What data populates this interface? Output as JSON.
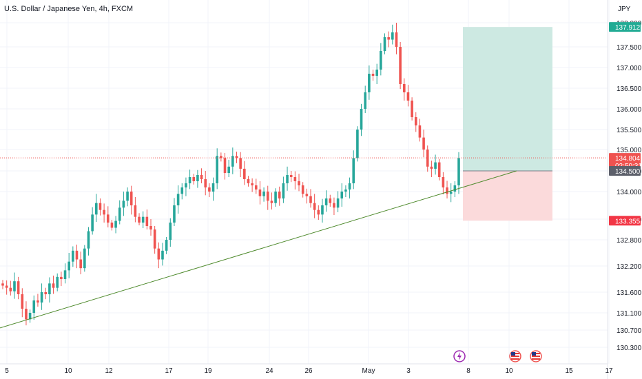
{
  "symbol_title": "U.S. Dollar / Japanese Yen, 4h, FXCM",
  "currency_label": "JPY",
  "colors": {
    "up": "#26a69a",
    "down": "#ef5350",
    "trendline": "#4e8a2c",
    "take_profit_zone": "#cde9e2",
    "stop_loss_zone": "#fbdadb",
    "last_price_line": "#ef5350"
  },
  "axis": {
    "y_ticks": [
      "138.000",
      "137.500",
      "137.000",
      "136.500",
      "136.000",
      "135.500",
      "135.000",
      "134.500",
      "134.000",
      "133.400",
      "132.800",
      "132.200",
      "131.600",
      "131.100",
      "130.700",
      "130.300"
    ],
    "x_ticks": [
      "5",
      "10",
      "12",
      "17",
      "19",
      "24",
      "26",
      "May",
      "3",
      "8",
      "10",
      "15",
      "17"
    ]
  },
  "price_tags": {
    "take_profit": "137.912",
    "last_price": "134.804",
    "countdown": "02:50:31",
    "entry": "134.500",
    "stop_loss": "133.355"
  },
  "event_icons": [
    "lightning-event-icon",
    "us-flag-event-icon",
    "us-flag-event-icon"
  ],
  "chart_data": {
    "type": "candlestick",
    "title": "U.S. Dollar / Japanese Yen, 4h, FXCM",
    "unit": "JPY",
    "x_tick_labels": [
      "5",
      "10",
      "12",
      "17",
      "19",
      "24",
      "26",
      "May",
      "3",
      "8",
      "10",
      "15",
      "17"
    ],
    "y_tick_labels": [
      "138.000",
      "137.500",
      "137.000",
      "136.500",
      "136.000",
      "135.500",
      "135.000",
      "134.500",
      "134.000",
      "133.400",
      "132.800",
      "132.200",
      "131.600",
      "131.100",
      "130.700",
      "130.300"
    ],
    "candles_close": [
      131.75,
      131.7,
      131.62,
      131.85,
      131.55,
      131.2,
      130.95,
      131.1,
      131.4,
      131.35,
      131.6,
      131.55,
      131.8,
      131.7,
      131.95,
      131.9,
      132.1,
      132.3,
      132.55,
      132.35,
      132.15,
      132.6,
      133.05,
      133.5,
      133.75,
      133.6,
      133.5,
      133.3,
      133.15,
      133.35,
      133.65,
      133.8,
      134.0,
      133.7,
      133.45,
      133.3,
      133.45,
      133.2,
      133.1,
      132.6,
      132.35,
      132.55,
      132.8,
      133.3,
      133.7,
      133.95,
      134.1,
      134.2,
      134.35,
      134.25,
      134.4,
      134.3,
      134.1,
      134.0,
      134.2,
      134.85,
      134.8,
      134.45,
      134.6,
      134.85,
      134.8,
      134.55,
      134.3,
      134.2,
      134.15,
      134.05,
      133.9,
      134.0,
      133.8,
      133.75,
      134.0,
      133.85,
      134.2,
      134.4,
      134.35,
      134.25,
      134.15,
      133.95,
      133.9,
      133.75,
      133.6,
      133.5,
      133.7,
      133.85,
      133.75,
      133.65,
      133.85,
      134.0,
      134.05,
      134.2,
      134.8,
      135.5,
      136.0,
      136.4,
      136.85,
      136.8,
      136.95,
      137.4,
      137.7,
      137.65,
      137.8,
      137.5,
      136.6,
      136.4,
      136.2,
      135.8,
      135.6,
      135.3,
      135.0,
      134.6,
      134.55,
      134.7,
      134.35,
      134.1,
      133.95,
      134.0,
      134.15,
      134.8
    ],
    "levels": {
      "take_profit": 137.912,
      "entry": 134.5,
      "stop_loss": 133.355,
      "last_price": 134.804
    },
    "trendline": {
      "start": 130.75,
      "end": 134.5
    },
    "ylim": [
      130.15,
      138.4
    ],
    "grid": true
  }
}
